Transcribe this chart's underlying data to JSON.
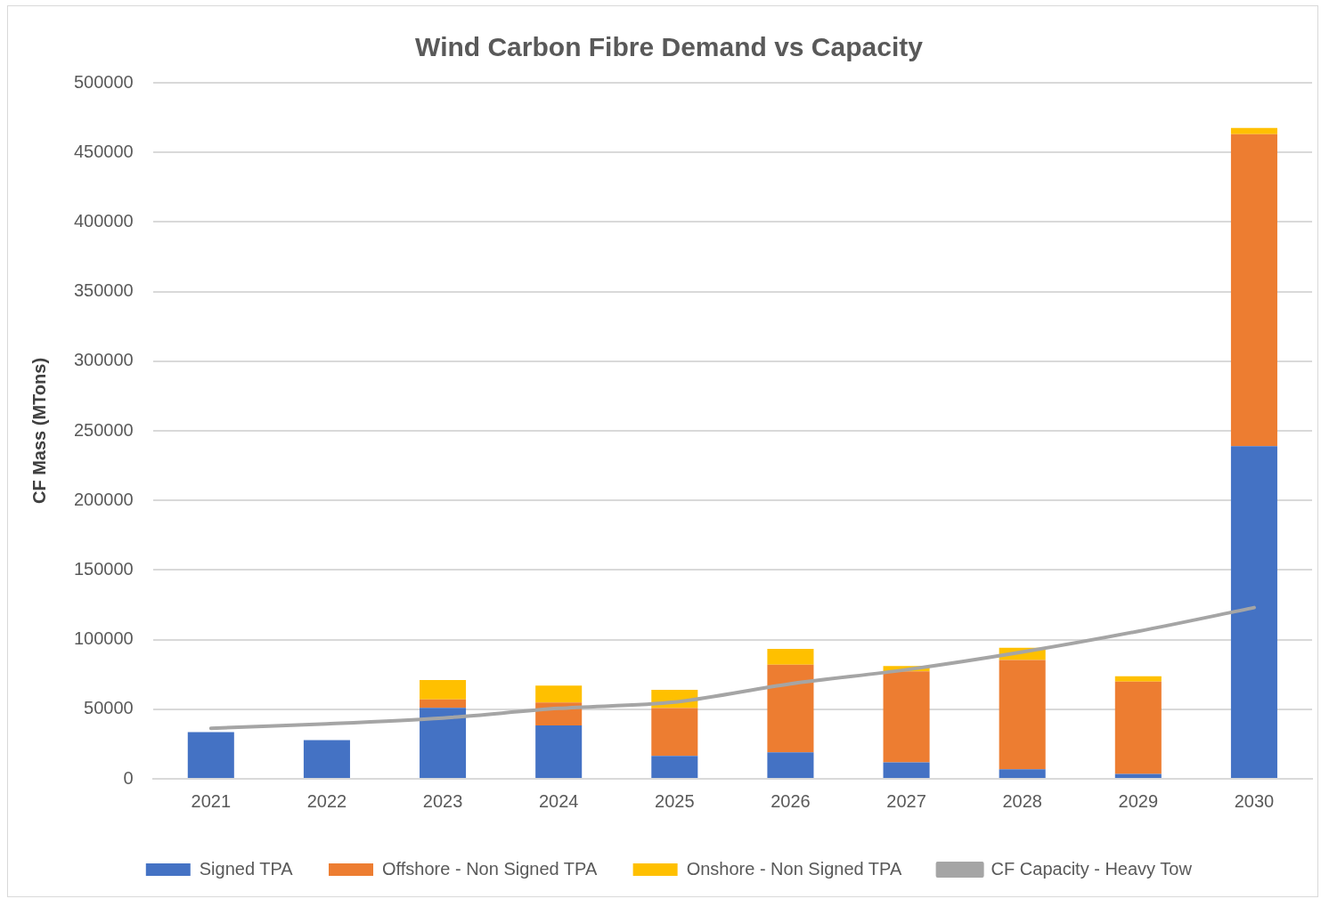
{
  "chart_data": {
    "type": "bar",
    "title": "Wind Carbon Fibre Demand vs Capacity",
    "ylabel": "CF Mass (MTons)",
    "categories": [
      "2021",
      "2022",
      "2023",
      "2024",
      "2025",
      "2026",
      "2027",
      "2028",
      "2029",
      "2030"
    ],
    "stacked": true,
    "series": [
      {
        "name": "Signed TPA",
        "color": "#4472c4",
        "values": [
          33500,
          27800,
          51000,
          38400,
          16400,
          19000,
          11900,
          6800,
          3500,
          239000
        ]
      },
      {
        "name": "Offshore - Non Signed TPA",
        "color": "#ed7d31",
        "values": [
          0,
          0,
          6000,
          16500,
          34400,
          63000,
          65300,
          78500,
          66400,
          224000
        ]
      },
      {
        "name": "Onshore - Non Signed TPA",
        "color": "#ffc000",
        "values": [
          0,
          0,
          14000,
          12000,
          13200,
          11400,
          3800,
          8900,
          3800,
          4500
        ]
      },
      {
        "name": "CF Capacity - Heavy Tow",
        "color": "#a5a5a5",
        "type": "line",
        "marker": "none",
        "line_style": "solid",
        "values": [
          36300,
          39500,
          43700,
          50600,
          55100,
          68300,
          78400,
          91100,
          106000,
          123000
        ]
      }
    ],
    "ylim": [
      0,
      500000
    ],
    "yticks": [
      0,
      50000,
      100000,
      150000,
      200000,
      250000,
      300000,
      350000,
      400000,
      450000,
      500000
    ],
    "grid": "y",
    "legend": "bottom"
  }
}
